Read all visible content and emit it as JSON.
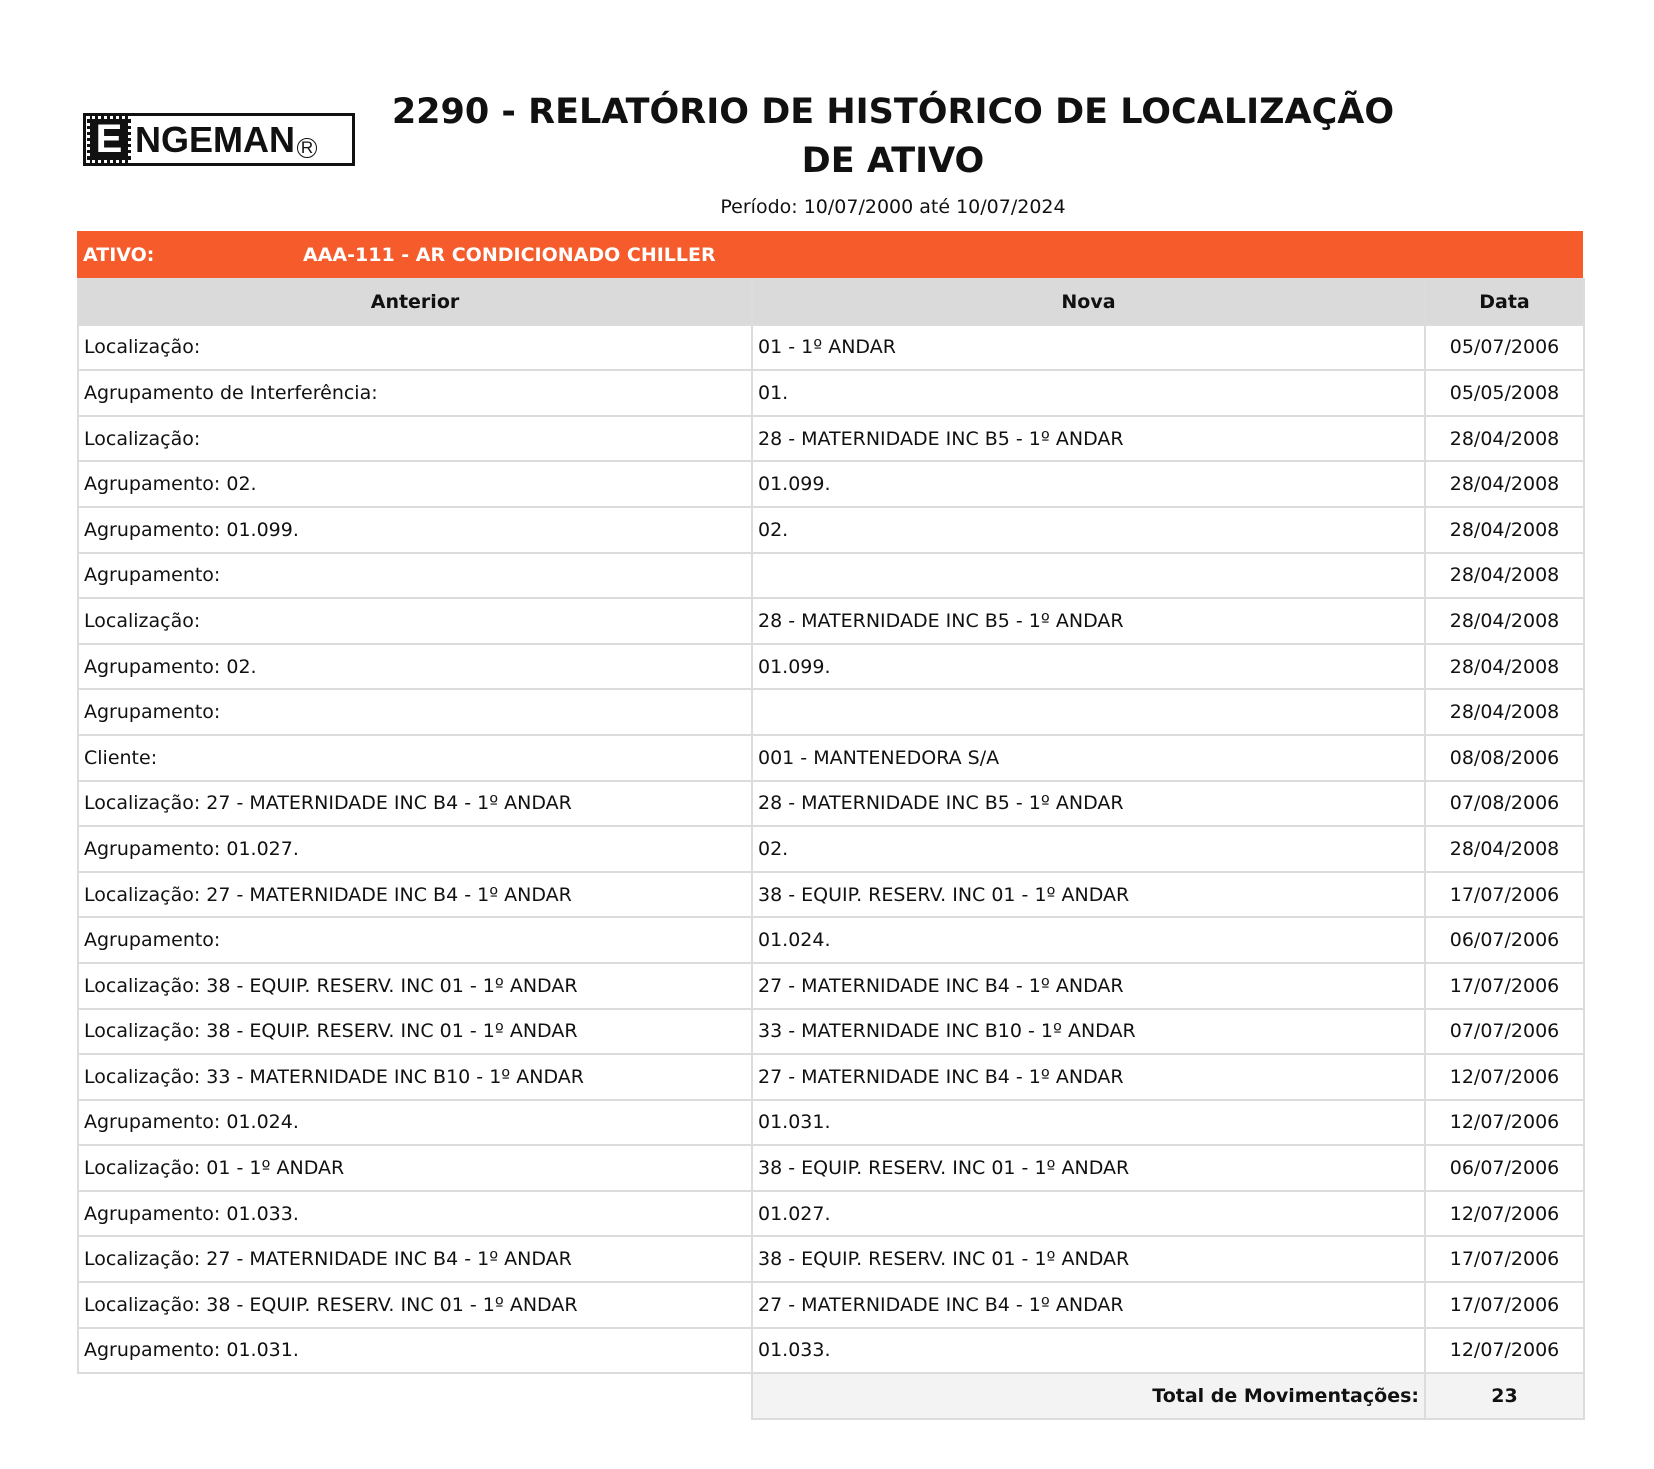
{
  "logo": {
    "text": "ENGEMAN"
  },
  "header": {
    "title": "2290 - RELATÓRIO DE HISTÓRICO DE LOCALIZAÇÃO DE ATIVO",
    "period": "Período: 10/07/2000 até 10/07/2024"
  },
  "ativo": {
    "label": "ATIVO:",
    "value": "AAA-111 - AR CONDICIONADO CHILLER",
    "color": "#f65b2c"
  },
  "table": {
    "columns": [
      "Anterior",
      "Nova",
      "Data"
    ],
    "rows": [
      [
        "Localização:",
        "01 - 1º ANDAR",
        "05/07/2006"
      ],
      [
        "Agrupamento de Interferência:",
        "01.",
        "05/05/2008"
      ],
      [
        "Localização:",
        "28 - MATERNIDADE INC B5 - 1º ANDAR",
        "28/04/2008"
      ],
      [
        "Agrupamento: 02.",
        "01.099.",
        "28/04/2008"
      ],
      [
        "Agrupamento: 01.099.",
        "02.",
        "28/04/2008"
      ],
      [
        "Agrupamento:",
        "",
        "28/04/2008"
      ],
      [
        "Localização:",
        "28 - MATERNIDADE INC B5 - 1º ANDAR",
        "28/04/2008"
      ],
      [
        "Agrupamento: 02.",
        "01.099.",
        "28/04/2008"
      ],
      [
        "Agrupamento:",
        "",
        "28/04/2008"
      ],
      [
        "Cliente:",
        "001 - MANTENEDORA S/A",
        "08/08/2006"
      ],
      [
        "Localização: 27 - MATERNIDADE INC B4 - 1º ANDAR",
        "28 - MATERNIDADE INC B5 - 1º ANDAR",
        "07/08/2006"
      ],
      [
        "Agrupamento: 01.027.",
        "02.",
        "28/04/2008"
      ],
      [
        "Localização: 27 - MATERNIDADE INC B4 - 1º ANDAR",
        "38 - EQUIP. RESERV. INC 01 - 1º ANDAR",
        "17/07/2006"
      ],
      [
        "Agrupamento:",
        "01.024.",
        "06/07/2006"
      ],
      [
        "Localização: 38 - EQUIP. RESERV. INC 01 - 1º ANDAR",
        "27 - MATERNIDADE INC B4 - 1º ANDAR",
        "17/07/2006"
      ],
      [
        "Localização: 38 - EQUIP. RESERV. INC 01 - 1º ANDAR",
        "33 - MATERNIDADE INC B10 - 1º ANDAR",
        "07/07/2006"
      ],
      [
        "Localização: 33 - MATERNIDADE INC B10 - 1º ANDAR",
        "27 - MATERNIDADE INC B4 - 1º ANDAR",
        "12/07/2006"
      ],
      [
        "Agrupamento: 01.024.",
        "01.031.",
        "12/07/2006"
      ],
      [
        "Localização: 01 - 1º ANDAR",
        "38 - EQUIP. RESERV. INC 01 - 1º ANDAR",
        "06/07/2006"
      ],
      [
        "Agrupamento: 01.033.",
        "01.027.",
        "12/07/2006"
      ],
      [
        "Localização: 27 - MATERNIDADE INC B4 - 1º ANDAR",
        "38 - EQUIP. RESERV. INC 01 - 1º ANDAR",
        "17/07/2006"
      ],
      [
        "Localização: 38 - EQUIP. RESERV. INC 01 - 1º ANDAR",
        "27 - MATERNIDADE INC B4 - 1º ANDAR",
        "17/07/2006"
      ],
      [
        "Agrupamento: 01.031.",
        "01.033.",
        "12/07/2006"
      ]
    ],
    "total_label": "Total de Movimentações:",
    "total_value": "23"
  }
}
